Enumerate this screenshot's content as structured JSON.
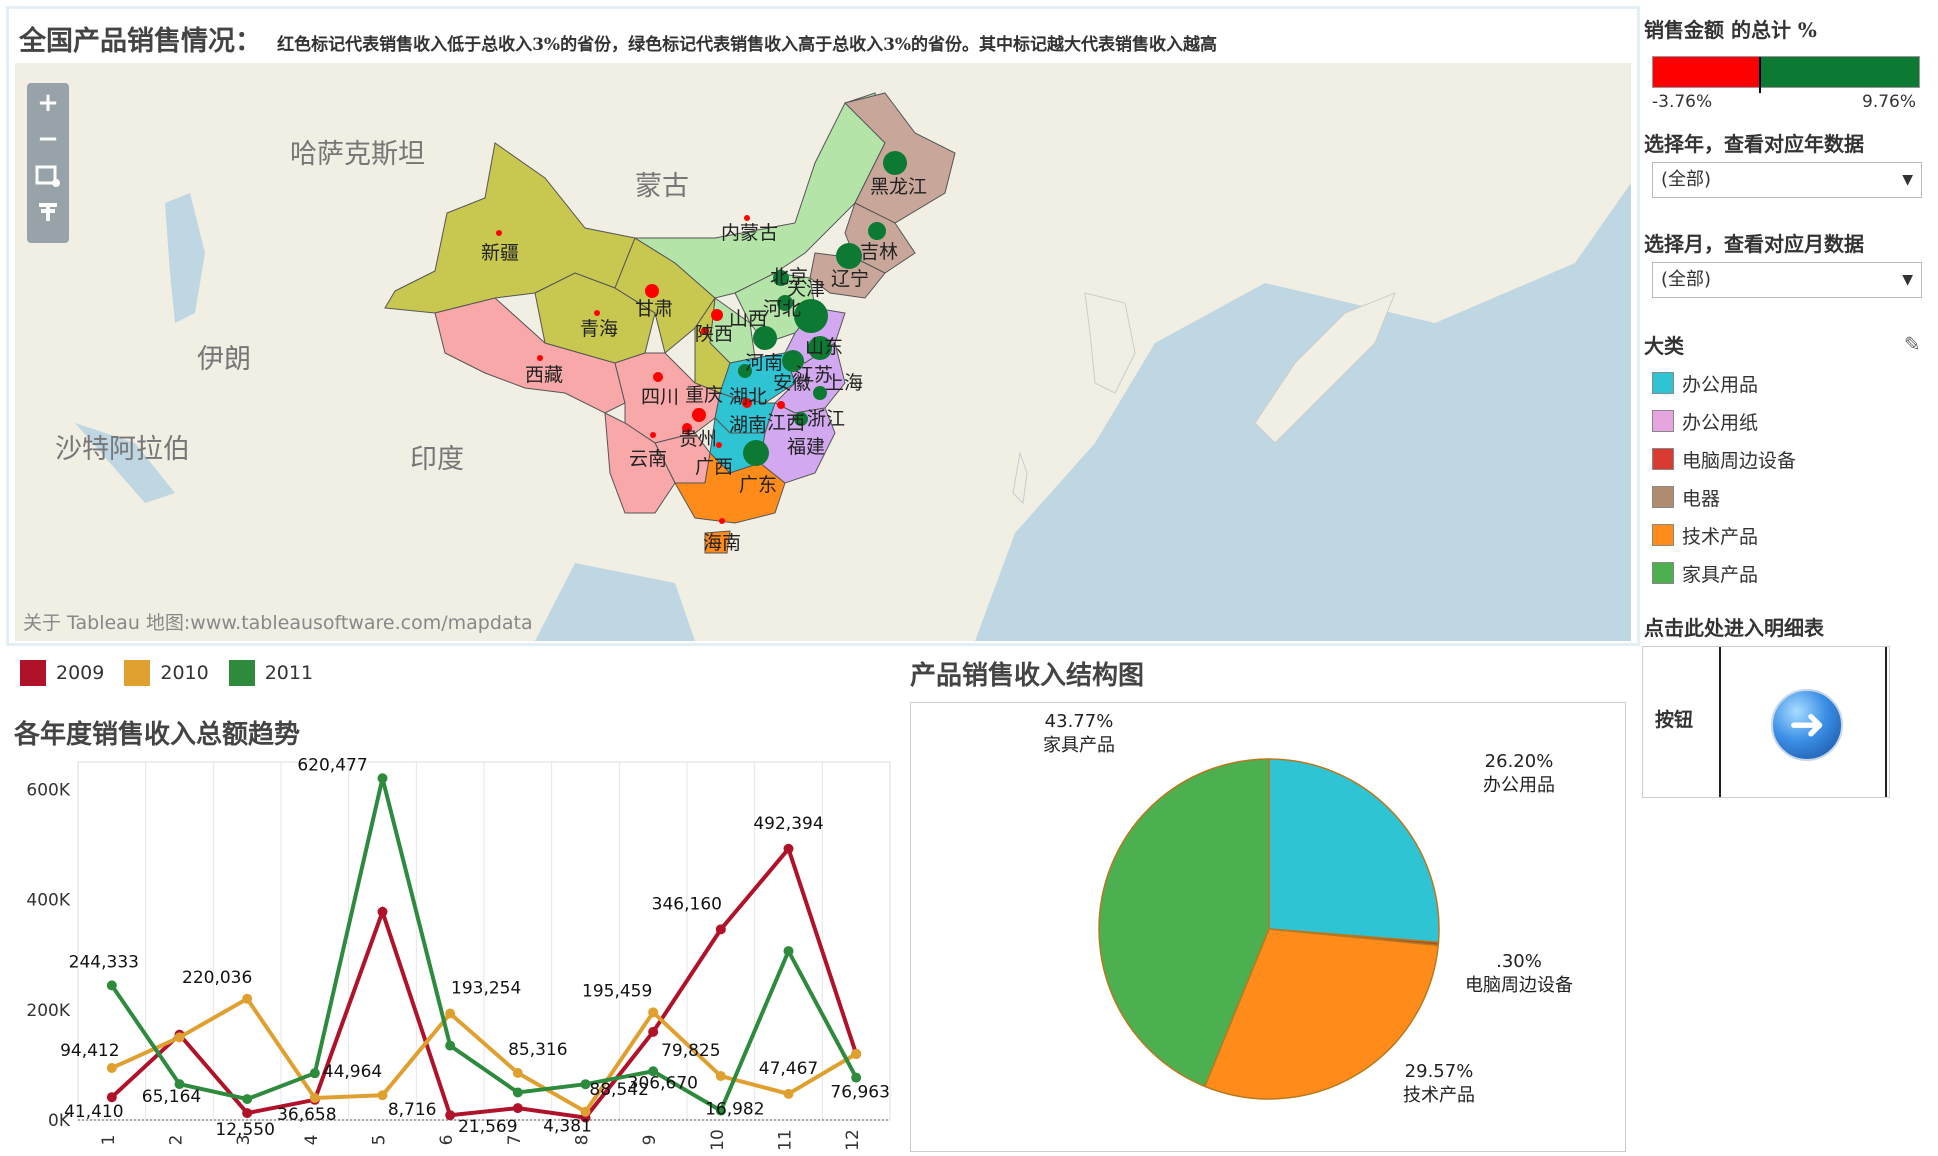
{
  "map": {
    "title": "全国产品销售情况：",
    "subtitle": "红色标记代表销售收入低于总收入3%的省份，绿色标记代表销售收入高于总收入3%的省份。其中标记越大代表销售收入越高",
    "attribution": "关于 Tableau 地图:www.tableausoftware.com/mapdata",
    "zoom_in": "+",
    "zoom_out": "−",
    "colors": {
      "red_marker": "#ff0000",
      "green_marker": "#0c7a33"
    },
    "countries": [
      "哈萨克斯坦",
      "蒙古",
      "伊朗",
      "沙特阿拉伯",
      "印度"
    ],
    "provinces": [
      {
        "name": "新疆",
        "category": "电脑周边设备",
        "marker": "red"
      },
      {
        "name": "西藏",
        "category": "电脑周边设备",
        "marker": "red"
      },
      {
        "name": "青海",
        "category": "电脑周边设备",
        "marker": "red"
      },
      {
        "name": "甘肃",
        "category": "电脑周边设备",
        "marker": "red"
      },
      {
        "name": "内蒙古",
        "category": "家具产品",
        "marker": "red"
      },
      {
        "name": "黑龙江",
        "category": "电器",
        "marker": "green"
      },
      {
        "name": "吉林",
        "category": "电器",
        "marker": "green"
      },
      {
        "name": "辽宁",
        "category": "电器",
        "marker": "green"
      },
      {
        "name": "北京",
        "category": "家具产品",
        "marker": "green"
      },
      {
        "name": "天津",
        "category": "家具产品",
        "marker": "green"
      },
      {
        "name": "河北",
        "category": "家具产品",
        "marker": "green"
      },
      {
        "name": "山西",
        "category": "家具产品",
        "marker": "red"
      },
      {
        "name": "陕西",
        "category": "电脑周边设备",
        "marker": "red"
      },
      {
        "name": "山东",
        "category": "办公用纸",
        "marker": "green"
      },
      {
        "name": "河南",
        "category": "办公用品",
        "marker": "green"
      },
      {
        "name": "江苏",
        "category": "办公用纸",
        "marker": "green"
      },
      {
        "name": "上海",
        "category": "办公用纸",
        "marker": "green"
      },
      {
        "name": "安徽",
        "category": "办公用纸",
        "marker": "green"
      },
      {
        "name": "四川",
        "category": "办公用纸",
        "marker": "red"
      },
      {
        "name": "重庆",
        "category": "办公用纸",
        "marker": "red"
      },
      {
        "name": "湖北",
        "category": "办公用品",
        "marker": "red"
      },
      {
        "name": "湖南",
        "category": "办公用品",
        "marker": "red"
      },
      {
        "name": "江西",
        "category": "办公用纸",
        "marker": "red"
      },
      {
        "name": "浙江",
        "category": "办公用纸",
        "marker": "green"
      },
      {
        "name": "福建",
        "category": "办公用纸",
        "marker": "red"
      },
      {
        "name": "贵州",
        "category": "办公用纸",
        "marker": "red"
      },
      {
        "name": "云南",
        "category": "办公用纸",
        "marker": "red"
      },
      {
        "name": "广西",
        "category": "技术产品",
        "marker": "red"
      },
      {
        "name": "广东",
        "category": "技术产品",
        "marker": "green"
      },
      {
        "name": "海南",
        "category": "技术产品",
        "marker": "red"
      }
    ]
  },
  "sidebar": {
    "color_legend_title": "销售金额 的总计 %",
    "color_min": "-3.76%",
    "color_max": "9.76%",
    "year_filter_label": "选择年，查看对应年数据",
    "year_filter_value": "(全部)",
    "month_filter_label": "选择月，查看对应月数据",
    "month_filter_value": "(全部)",
    "category_legend_title": "大类",
    "categories": [
      {
        "name": "办公用品",
        "color": "#2ec4d4"
      },
      {
        "name": "办公用纸",
        "color": "#e7a5e0"
      },
      {
        "name": "电脑周边设备",
        "color": "#d93b33"
      },
      {
        "name": "电器",
        "color": "#b08b72"
      },
      {
        "name": "技术产品",
        "color": "#ff8c1a"
      },
      {
        "name": "家具产品",
        "color": "#4caf50"
      }
    ],
    "detail_link_label": "点击此处进入明细表",
    "button_label": "按钮",
    "button_icon": "right-arrow-icon"
  },
  "line_chart": {
    "title": "各年度销售收入总额趋势",
    "legend": [
      {
        "name": "2009",
        "color": "#b0122a"
      },
      {
        "name": "2010",
        "color": "#e0a030"
      },
      {
        "name": "2011",
        "color": "#2e8b3e"
      }
    ]
  },
  "chart_data": [
    {
      "type": "line",
      "title": "各年度销售收入总额趋势",
      "categories": [
        "1",
        "2",
        "3",
        "4",
        "5",
        "6",
        "7",
        "8",
        "9",
        "10",
        "11",
        "12"
      ],
      "ylim": [
        0,
        650000
      ],
      "yticks": [
        "0K",
        "200K",
        "400K",
        "600K"
      ],
      "series": [
        {
          "name": "2009",
          "values": [
            41410,
            155000,
            12550,
            36658,
            378000,
            8716,
            21569,
            4381,
            160000,
            346160,
            492394,
            120000
          ]
        },
        {
          "name": "2010",
          "values": [
            94412,
            150000,
            220036,
            40000,
            44964,
            193254,
            85316,
            15000,
            195459,
            79825,
            47467,
            120000
          ]
        },
        {
          "name": "2011",
          "values": [
            244333,
            65164,
            38000,
            85000,
            620477,
            135000,
            50000,
            65000,
            88542,
            16982,
            306670,
            76963
          ]
        }
      ],
      "data_labels": [
        {
          "text": "244,333"
        },
        {
          "text": "94,412"
        },
        {
          "text": "41,410"
        },
        {
          "text": "65,164"
        },
        {
          "text": "220,036"
        },
        {
          "text": "12,550"
        },
        {
          "text": "36,658"
        },
        {
          "text": "620,477"
        },
        {
          "text": "44,964"
        },
        {
          "text": "8,716"
        },
        {
          "text": "193,254"
        },
        {
          "text": "85,316"
        },
        {
          "text": "21,569"
        },
        {
          "text": "4,381"
        },
        {
          "text": "195,459"
        },
        {
          "text": "88,542"
        },
        {
          "text": "346,160"
        },
        {
          "text": "79,825"
        },
        {
          "text": "306,670"
        },
        {
          "text": "16,982"
        },
        {
          "text": "492,394"
        },
        {
          "text": "47,467"
        },
        {
          "text": "76,963"
        }
      ]
    },
    {
      "type": "pie",
      "title": "产品销售收入结构图",
      "slices": [
        {
          "label": "办公用品",
          "percent": "26.20%",
          "value": 26.2,
          "color": "#2ec4d4"
        },
        {
          "label": "电脑周边设备",
          "percent": ".30%",
          "value": 0.3,
          "color": "#a0522d"
        },
        {
          "label": "技术产品",
          "percent": "29.57%",
          "value": 29.57,
          "color": "#ff8c1a"
        },
        {
          "label": "家具产品",
          "percent": "43.77%",
          "value": 43.77,
          "color": "#4caf50"
        }
      ]
    }
  ]
}
